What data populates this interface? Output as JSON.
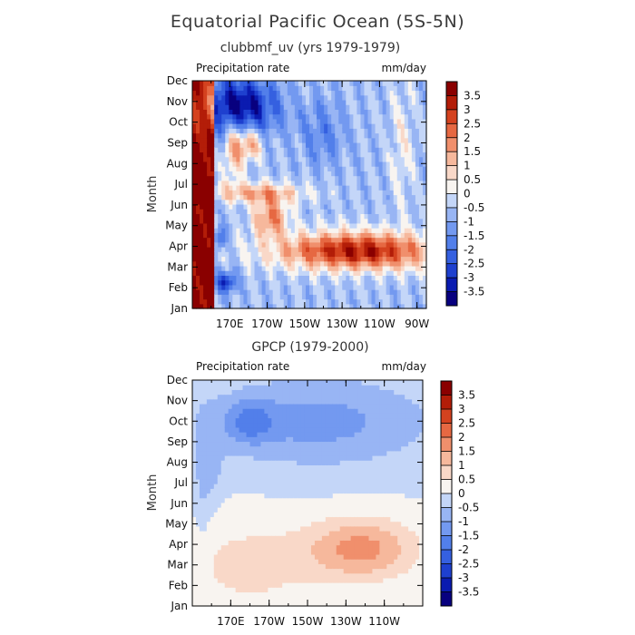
{
  "figure": {
    "title": "Equatorial Pacific Ocean (5S-5N)"
  },
  "chart_data": [
    {
      "type": "heatmap",
      "title": "clubbmf_uv (yrs 1979-1979)",
      "left_label": "Precipitation rate",
      "right_label": "mm/day",
      "ylabel": "Month",
      "y_categories": [
        "Jan",
        "Feb",
        "Mar",
        "Apr",
        "May",
        "Jun",
        "Jul",
        "Aug",
        "Sep",
        "Oct",
        "Nov",
        "Dec"
      ],
      "x_ticks": [
        "170E",
        "170W",
        "150W",
        "130W",
        "110W",
        "90W"
      ],
      "x_tick_lon": [
        170,
        190,
        210,
        230,
        250,
        270
      ],
      "xlim": [
        150,
        275
      ],
      "colorbar_levels": [
        "3.5",
        "3",
        "2.5",
        "2",
        "1.5",
        "1",
        "0.5",
        "0",
        "-0.5",
        "-1",
        "-1.5",
        "-2",
        "-2.5",
        "-3",
        "-3.5"
      ],
      "value_range": [
        -4,
        4
      ],
      "colors": [
        "#08007f",
        "#0a1bb0",
        "#1e40cf",
        "#3560e0",
        "#527fea",
        "#7399f0",
        "#98b5f4",
        "#c4d6f8",
        "#f8f4f0",
        "#f9d8c8",
        "#f6b89c",
        "#f08f6c",
        "#e66842",
        "#d4421f",
        "#b31d08",
        "#8a0000"
      ]
    },
    {
      "type": "heatmap",
      "title": "GPCP (1979-2000)",
      "left_label": "Precipitation rate",
      "right_label": "mm/day",
      "ylabel": "Month",
      "y_categories": [
        "Jan",
        "Feb",
        "Mar",
        "Apr",
        "May",
        "Jun",
        "Jul",
        "Aug",
        "Sep",
        "Oct",
        "Nov",
        "Dec"
      ],
      "x_ticks": [
        "170E",
        "170W",
        "150W",
        "130W",
        "110W"
      ],
      "x_tick_lon": [
        170,
        190,
        210,
        230,
        250
      ],
      "xlim": [
        150,
        270
      ],
      "colorbar_levels": [
        "3.5",
        "3",
        "2.5",
        "2",
        "1.5",
        "1",
        "0.5",
        "0",
        "-0.5",
        "-1",
        "-1.5",
        "-2",
        "-2.5",
        "-3",
        "-3.5"
      ],
      "value_range": [
        -4,
        4
      ],
      "colors": [
        "#08007f",
        "#0a1bb0",
        "#1e40cf",
        "#3560e0",
        "#527fea",
        "#7399f0",
        "#98b5f4",
        "#c4d6f8",
        "#f8f4f0",
        "#f9d8c8",
        "#f6b89c",
        "#f08f6c",
        "#e66842",
        "#d4421f",
        "#b31d08",
        "#8a0000"
      ]
    }
  ]
}
